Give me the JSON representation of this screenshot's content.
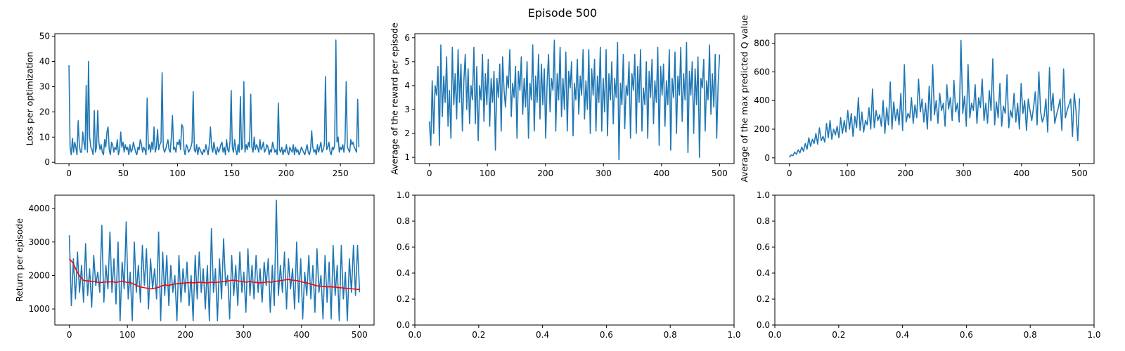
{
  "suptitle": "Episode 500",
  "colors": {
    "series_blue": "#1f77b4",
    "series_red": "#ff0000",
    "axes": "#000000",
    "background": "#ffffff"
  },
  "chart_data": [
    {
      "type": "line",
      "xlabel": "",
      "ylabel": "Loss per optimization",
      "xlim": [
        -13,
        281
      ],
      "ylim": [
        -0.5,
        51
      ],
      "xticks": [
        0,
        50,
        100,
        150,
        200,
        250
      ],
      "yticks": [
        0,
        10,
        20,
        30,
        40,
        50
      ],
      "series": [
        {
          "color": "#1f77b4",
          "values": [
            38.5,
            6,
            3,
            9.5,
            4,
            8,
            6,
            3,
            16.5,
            7,
            4,
            4,
            12,
            8,
            5,
            30.5,
            4,
            40,
            10,
            6,
            5,
            3,
            20.5,
            4,
            6,
            20.5,
            8,
            5,
            7,
            4,
            3,
            9,
            6,
            12,
            14,
            5,
            3,
            8,
            7,
            4,
            6,
            5,
            9,
            3,
            5,
            12,
            6,
            8,
            4,
            7,
            5,
            6,
            3,
            7,
            4,
            5,
            8,
            6,
            4,
            3,
            6,
            5,
            9,
            7,
            4,
            6,
            5,
            3,
            25.5,
            5,
            7,
            4,
            8,
            5,
            14,
            4,
            6,
            13,
            5,
            7,
            8,
            35.5,
            6,
            4,
            5,
            7,
            9,
            5,
            4,
            10,
            18.5,
            5,
            6,
            4,
            8,
            7,
            9,
            5,
            15,
            14,
            5,
            3,
            7,
            6,
            4,
            5,
            6,
            8,
            28,
            5,
            4,
            7,
            3,
            6,
            5,
            4,
            3,
            5,
            4,
            7,
            5,
            3,
            7,
            14,
            6,
            4,
            8,
            5,
            3,
            6,
            4,
            5,
            7,
            8,
            4,
            6,
            3,
            9,
            5,
            4,
            8,
            28.5,
            6,
            4,
            9,
            5,
            3,
            7,
            4,
            26,
            5,
            6,
            32,
            4,
            7,
            5,
            8,
            6,
            27,
            6,
            4,
            10,
            5,
            7,
            6,
            4,
            9,
            5,
            6,
            8,
            4,
            5,
            7,
            6,
            3,
            5,
            4,
            8,
            6,
            4,
            5,
            3,
            23.5,
            5,
            4,
            6,
            3,
            5,
            4,
            7,
            4,
            3,
            6,
            5,
            4,
            7,
            3,
            6,
            4,
            5,
            3,
            4,
            6,
            5,
            4,
            3,
            5,
            7,
            4,
            3,
            5,
            12.5,
            6,
            4,
            5,
            3,
            7,
            4,
            6,
            8,
            4,
            5,
            7,
            34,
            5,
            6,
            8,
            4,
            3,
            6,
            5,
            7,
            48.5,
            8,
            10,
            4,
            6,
            5,
            7,
            4,
            8,
            32,
            6,
            5,
            4,
            9,
            7,
            8,
            6,
            5,
            4,
            25,
            6
          ]
        }
      ]
    },
    {
      "type": "line",
      "xlabel": "",
      "ylabel": "Average of the reward per episode",
      "xlim": [
        -25,
        525
      ],
      "ylim": [
        0.74,
        6.17
      ],
      "xticks": [
        0,
        100,
        200,
        300,
        400,
        500
      ],
      "yticks": [
        1,
        2,
        3,
        4,
        5,
        6
      ],
      "series": [
        {
          "color": "#1f77b4",
          "values": [
            2.5,
            1.5,
            4.2,
            2.0,
            4.0,
            3.6,
            4.8,
            1.5,
            5.7,
            2.7,
            4.4,
            3.3,
            5.2,
            2.3,
            3.8,
            1.8,
            5.6,
            3.2,
            4.5,
            2.6,
            5.5,
            3.3,
            4.9,
            2.1,
            4.2,
            5.3,
            3.0,
            4.7,
            2.4,
            4.0,
            3.4,
            5.6,
            2.4,
            4.8,
            1.7,
            4.0,
            3.4,
            5.3,
            2.5,
            4.5,
            3.2,
            5.1,
            2.3,
            4.3,
            3.3,
            4.6,
            1.3,
            4.3,
            3.5,
            4.9,
            2.1,
            5.2,
            3.8,
            3.1,
            4.4,
            3.9,
            5.5,
            2.7,
            4.1,
            3.5,
            4.8,
            1.8,
            4.6,
            3.8,
            5.2,
            2.8,
            4.3,
            3.1,
            5.0,
            1.8,
            4.1,
            3.4,
            5.7,
            2.1,
            4.4,
            3.3,
            5.3,
            2.6,
            4.9,
            3.2,
            4.7,
            1.8,
            4.2,
            5.3,
            2.9,
            4.3,
            3.8,
            5.9,
            2.1,
            4.5,
            3.4,
            5.6,
            2.7,
            4.3,
            3.0,
            5.4,
            2.1,
            4.6,
            3.9,
            5.0,
            1.9,
            4.1,
            3.4,
            5.1,
            2.8,
            4.4,
            3.6,
            5.5,
            2.6,
            4.2,
            3.0,
            5.5,
            2.0,
            4.7,
            3.6,
            5.1,
            2.1,
            4.4,
            3.3,
            5.6,
            2.1,
            4.3,
            2.9,
            5.5,
            1.9,
            4.5,
            3.4,
            5.0,
            2.4,
            4.3,
            3.5,
            5.8,
            0.9,
            4.1,
            3.2,
            5.3,
            2.2,
            4.0,
            3.6,
            5.0,
            1.8,
            4.5,
            3.8,
            5.3,
            2.0,
            4.8,
            3.3,
            5.5,
            2.1,
            3.9,
            3.2,
            5.0,
            1.8,
            4.6,
            3.5,
            5.1,
            2.4,
            4.2,
            3.3,
            5.6,
            1.5,
            4.8,
            3.6,
            4.9,
            2.3,
            4.2,
            3.2,
            5.5,
            1.3,
            4.3,
            3.5,
            5.4,
            2.0,
            4.4,
            3.6,
            5.6,
            2.5,
            4.5,
            3.4,
            5.8,
            1.2,
            4.6,
            3.6,
            5.0,
            2.0,
            4.7,
            3.2,
            5.2,
            1.0,
            4.3,
            3.9,
            5.1,
            2.1,
            4.2,
            3.4,
            5.7,
            2.8,
            4.5,
            3.1,
            5.3,
            1.8,
            4.0,
            5.3
          ]
        }
      ]
    },
    {
      "type": "line",
      "xlabel": "",
      "ylabel": "Average of the max predicted Q value",
      "xlim": [
        -25,
        525
      ],
      "ylim": [
        -40,
        866
      ],
      "xticks": [
        0,
        100,
        200,
        300,
        400,
        500
      ],
      "yticks": [
        0,
        200,
        400,
        600,
        800
      ],
      "series": [
        {
          "color": "#1f77b4",
          "values": [
            5,
            20,
            15,
            40,
            25,
            55,
            35,
            75,
            45,
            100,
            60,
            140,
            80,
            130,
            100,
            170,
            95,
            210,
            120,
            150,
            110,
            240,
            140,
            260,
            130,
            200,
            160,
            220,
            140,
            280,
            170,
            260,
            180,
            330,
            200,
            310,
            150,
            290,
            210,
            420,
            190,
            320,
            180,
            260,
            230,
            350,
            200,
            480,
            210,
            330,
            260,
            300,
            220,
            400,
            170,
            350,
            230,
            530,
            200,
            390,
            260,
            340,
            230,
            450,
            190,
            650,
            250,
            310,
            280,
            420,
            240,
            370,
            280,
            550,
            320,
            410,
            250,
            380,
            200,
            500,
            260,
            650,
            300,
            400,
            240,
            450,
            330,
            380,
            220,
            510,
            340,
            420,
            260,
            540,
            320,
            380,
            250,
            820,
            310,
            430,
            220,
            650,
            280,
            380,
            330,
            510,
            240,
            420,
            350,
            550,
            260,
            380,
            240,
            470,
            330,
            690,
            230,
            390,
            280,
            520,
            220,
            360,
            310,
            580,
            210,
            330,
            280,
            450,
            250,
            380,
            200,
            520,
            310,
            400,
            190,
            410,
            330,
            260,
            350,
            460,
            230,
            600,
            320,
            250,
            290,
            410,
            180,
            630,
            330,
            450,
            240,
            300,
            350,
            410,
            190,
            620,
            280,
            330,
            370,
            410,
            150,
            450,
            330,
            120,
            415
          ]
        }
      ]
    },
    {
      "type": "line",
      "xlabel": "",
      "ylabel": "Return per episode",
      "xlim": [
        -25,
        525
      ],
      "ylim": [
        520,
        4400
      ],
      "xticks": [
        0,
        100,
        200,
        300,
        400,
        500
      ],
      "yticks": [
        1000,
        2000,
        3000,
        4000
      ],
      "series": [
        {
          "color": "#1f77b4",
          "values": [
            3200,
            1100,
            2500,
            1300,
            2700,
            1500,
            2300,
            1200,
            2950,
            1400,
            2200,
            1050,
            2600,
            1700,
            2100,
            1500,
            3500,
            1200,
            2300,
            1600,
            3300,
            1500,
            2500,
            1150,
            3000,
            650,
            2400,
            1600,
            3600,
            1300,
            2100,
            650,
            3000,
            1500,
            2300,
            1200,
            2900,
            1700,
            2800,
            1000,
            2500,
            1600,
            2200,
            1300,
            3300,
            650,
            2700,
            1400,
            2600,
            1100,
            2300,
            1500,
            2000,
            650,
            2600,
            1200,
            2200,
            1500,
            2400,
            1100,
            2000,
            650,
            2600,
            1300,
            2700,
            1500,
            2200,
            1000,
            2300,
            650,
            3400,
            1500,
            2200,
            650,
            2500,
            1300,
            3100,
            1700,
            2000,
            700,
            2600,
            1400,
            2300,
            1100,
            2700,
            1500,
            2100,
            900,
            2800,
            1400,
            2300,
            1300,
            2600,
            1500,
            2200,
            1200,
            2400,
            1700,
            2500,
            900,
            2300,
            1100,
            4250,
            1400,
            2300,
            1500,
            2700,
            1000,
            2500,
            1600,
            2200,
            1000,
            3000,
            1200,
            2500,
            700,
            2100,
            1400,
            2600,
            1300,
            2300,
            900,
            2800,
            1500,
            2000,
            700,
            2600,
            1200,
            2400,
            700,
            2900,
            1400,
            2300,
            650,
            2900,
            1300,
            2100,
            650,
            2500,
            1500,
            2900,
            1400,
            2900,
            1500
          ]
        },
        {
          "color": "#ff0000",
          "values": [
            2500,
            2380,
            2150,
            1970,
            1850,
            1840,
            1830,
            1820,
            1800,
            1790,
            1810,
            1800,
            1820,
            1790,
            1810,
            1830,
            1800,
            1790,
            1760,
            1700,
            1660,
            1640,
            1620,
            1600,
            1620,
            1640,
            1680,
            1720,
            1700,
            1730,
            1750,
            1760,
            1770,
            1780,
            1790,
            1780,
            1790,
            1800,
            1790,
            1780,
            1800,
            1790,
            1800,
            1810,
            1820,
            1840,
            1860,
            1850,
            1830,
            1820,
            1800,
            1820,
            1800,
            1790,
            1780,
            1790,
            1810,
            1800,
            1820,
            1840,
            1850,
            1870,
            1880,
            1860,
            1850,
            1830,
            1800,
            1780,
            1750,
            1720,
            1690,
            1680,
            1670,
            1660,
            1660,
            1650,
            1640,
            1630,
            1620,
            1610,
            1600,
            1590,
            1580
          ]
        }
      ]
    },
    {
      "type": "line",
      "xlabel": "",
      "ylabel": "",
      "xlim": [
        0,
        1
      ],
      "ylim": [
        0,
        1
      ],
      "xticks": [
        0.0,
        0.2,
        0.4,
        0.6,
        0.8,
        1.0
      ],
      "yticks": [
        0.0,
        0.2,
        0.4,
        0.6,
        0.8,
        1.0
      ],
      "series": []
    },
    {
      "type": "line",
      "xlabel": "",
      "ylabel": "",
      "xlim": [
        0,
        1
      ],
      "ylim": [
        0,
        1
      ],
      "xticks": [
        0.0,
        0.2,
        0.4,
        0.6,
        0.8,
        1.0
      ],
      "yticks": [
        0.0,
        0.2,
        0.4,
        0.6,
        0.8,
        1.0
      ],
      "series": []
    }
  ]
}
